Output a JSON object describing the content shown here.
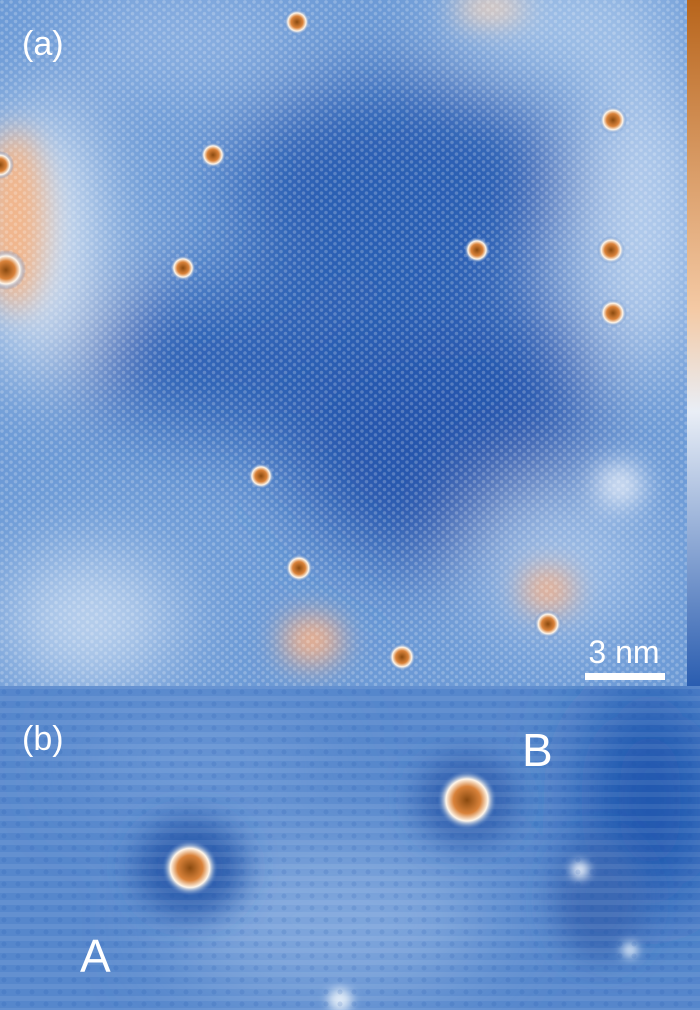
{
  "panels": [
    {
      "label": "(a)",
      "scale_bar": "3 nm"
    },
    {
      "label": "(b)",
      "sites": [
        "A",
        "B"
      ]
    }
  ]
}
